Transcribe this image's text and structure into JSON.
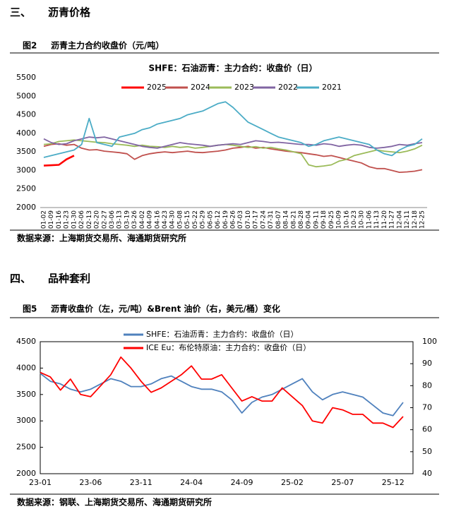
{
  "document": {
    "sections": [
      {
        "number": "三、",
        "title": "沥青价格"
      },
      {
        "number": "四、",
        "title": "品种套利"
      }
    ],
    "figures": [
      {
        "number": "图2",
        "caption": "沥青主力合约收盘价（元/吨）",
        "source": "数据来源：上海期货交易所、海通期货研究所"
      },
      {
        "number": "图5",
        "caption": "沥青收盘价（左，元/吨）&Brent 油价（右，美元/桶）变化",
        "source": "数据来源：钢联、上海期货交易所、海通期货研究所"
      }
    ]
  },
  "chart_data": [
    {
      "type": "line",
      "title": "SHFE：石油沥青：主力合约：收盘价（日）",
      "legend": "top",
      "categories": [
        "01-02",
        "01-09",
        "01-16",
        "01-23",
        "01-30",
        "02-06",
        "02-13",
        "02-20",
        "02-27",
        "03-06",
        "03-13",
        "03-19",
        "03-26",
        "04-02",
        "04-09",
        "04-16",
        "04-23",
        "04-30",
        "05-08",
        "05-15",
        "05-22",
        "05-29",
        "06-05",
        "06-12",
        "06-19",
        "06-26",
        "07-03",
        "07-10",
        "07-17",
        "07-24",
        "07-31",
        "08-07",
        "08-14",
        "08-21",
        "08-28",
        "09-04",
        "09-11",
        "09-18",
        "09-25",
        "10-09",
        "10-16",
        "10-23",
        "10-30",
        "11-06",
        "11-13",
        "11-20",
        "11-27",
        "12-04",
        "12-11",
        "12-18",
        "12-25"
      ],
      "ylim": [
        2000,
        5500
      ],
      "yticks": [
        2000,
        2500,
        3000,
        3500,
        4000,
        4500,
        5000,
        5500
      ],
      "series": [
        {
          "name": "2025",
          "color": "#ff0000",
          "values": [
            3130,
            3140,
            3150,
            3300,
            3400,
            null,
            null,
            null,
            null,
            null,
            null,
            null,
            null,
            null,
            null,
            null,
            null,
            null,
            null,
            null,
            null,
            null,
            null,
            null,
            null,
            null,
            null,
            null,
            null,
            null,
            null,
            null,
            null,
            null,
            null,
            null,
            null,
            null,
            null,
            null,
            null,
            null,
            null,
            null,
            null,
            null,
            null,
            null,
            null,
            null,
            null
          ]
        },
        {
          "name": "2024",
          "color": "#c0504d",
          "values": [
            3650,
            3700,
            3720,
            3680,
            3700,
            3600,
            3550,
            3560,
            3520,
            3500,
            3480,
            3450,
            3300,
            3400,
            3450,
            3480,
            3500,
            3480,
            3500,
            3520,
            3490,
            3480,
            3500,
            3520,
            3550,
            3600,
            3620,
            3650,
            3600,
            3620,
            3580,
            3550,
            3520,
            3500,
            3480,
            3450,
            3420,
            3380,
            3400,
            3350,
            3300,
            3250,
            3200,
            3100,
            3050,
            3050,
            3000,
            2950,
            2960,
            2980,
            3020
          ]
        },
        {
          "name": "2023",
          "color": "#9bbb59",
          "values": [
            3700,
            3720,
            3780,
            3800,
            3820,
            3800,
            3780,
            3760,
            3750,
            3720,
            3700,
            3680,
            3650,
            3680,
            3650,
            3640,
            3620,
            3650,
            3620,
            3640,
            3600,
            3620,
            3650,
            3680,
            3700,
            3680,
            3650,
            3620,
            3640,
            3600,
            3620,
            3580,
            3550,
            3500,
            3450,
            3150,
            3100,
            3120,
            3150,
            3250,
            3300,
            3400,
            3450,
            3500,
            3550,
            3520,
            3500,
            3480,
            3520,
            3580,
            3680
          ]
        },
        {
          "name": "2022",
          "color": "#8064a2",
          "values": [
            3850,
            3750,
            3700,
            3720,
            3800,
            3850,
            3900,
            3880,
            3900,
            3850,
            3800,
            3750,
            3700,
            3650,
            3620,
            3600,
            3650,
            3700,
            3750,
            3720,
            3700,
            3680,
            3650,
            3680,
            3700,
            3720,
            3700,
            3750,
            3800,
            3780,
            3750,
            3760,
            3740,
            3720,
            3700,
            3700,
            3680,
            3720,
            3700,
            3650,
            3680,
            3700,
            3680,
            3620,
            3600,
            3620,
            3650,
            3700,
            3680,
            3720,
            3750
          ]
        },
        {
          "name": "2021",
          "color": "#4bacc6",
          "values": [
            3350,
            3400,
            3450,
            3500,
            3550,
            3700,
            4400,
            3750,
            3700,
            3650,
            3900,
            3950,
            4000,
            4100,
            4150,
            4250,
            4300,
            4350,
            4400,
            4500,
            4550,
            4600,
            4700,
            4800,
            4850,
            4700,
            4500,
            4300,
            4200,
            4100,
            4000,
            3900,
            3850,
            3800,
            3750,
            3650,
            3700,
            3800,
            3850,
            3900,
            3850,
            3800,
            3750,
            3700,
            3550,
            3450,
            3400,
            3550,
            3650,
            3700,
            3850
          ]
        }
      ]
    },
    {
      "type": "line",
      "legend": "top",
      "categories": [
        "23-01",
        null,
        null,
        null,
        null,
        "23-06",
        null,
        null,
        null,
        null,
        "23-11",
        null,
        null,
        null,
        null,
        "24-04",
        null,
        null,
        null,
        null,
        "24-09",
        null,
        null,
        null,
        null,
        "25-02",
        null,
        null,
        null,
        null,
        "25-07",
        null,
        null,
        null,
        null,
        "25-12",
        null
      ],
      "ylim": [
        2000,
        4500
      ],
      "yticks": [
        2000,
        2500,
        3000,
        3500,
        4000,
        4500
      ],
      "y2lim": [
        40,
        100
      ],
      "y2ticks": [
        40,
        50,
        60,
        70,
        80,
        90,
        100
      ],
      "series": [
        {
          "name": "SHFE：石油沥青：主力合约：收盘价（日）",
          "color": "#4f81bd",
          "values": [
            3900,
            3750,
            3700,
            3600,
            3550,
            3600,
            3700,
            3800,
            3750,
            3650,
            3650,
            3700,
            3800,
            3850,
            3750,
            3650,
            3600,
            3600,
            3550,
            3400,
            3150,
            3350,
            3450,
            3500,
            3600,
            3700,
            3800,
            3550,
            3400,
            3500,
            3550,
            3500,
            3450,
            3300,
            3150,
            3100,
            3350
          ]
        },
        {
          "name": "ICE Eu：布伦特原油：主力合约：收盘价（日）",
          "color": "#ff0000",
          "axis": "y2",
          "values": [
            86,
            84,
            78,
            83,
            76,
            75,
            80,
            85,
            93,
            88,
            82,
            77,
            79,
            82,
            85,
            89,
            83,
            83,
            85,
            79,
            73,
            75,
            73,
            73,
            79,
            75,
            71,
            64,
            63,
            70,
            69,
            67,
            67,
            63,
            63,
            61,
            66
          ]
        }
      ]
    }
  ]
}
